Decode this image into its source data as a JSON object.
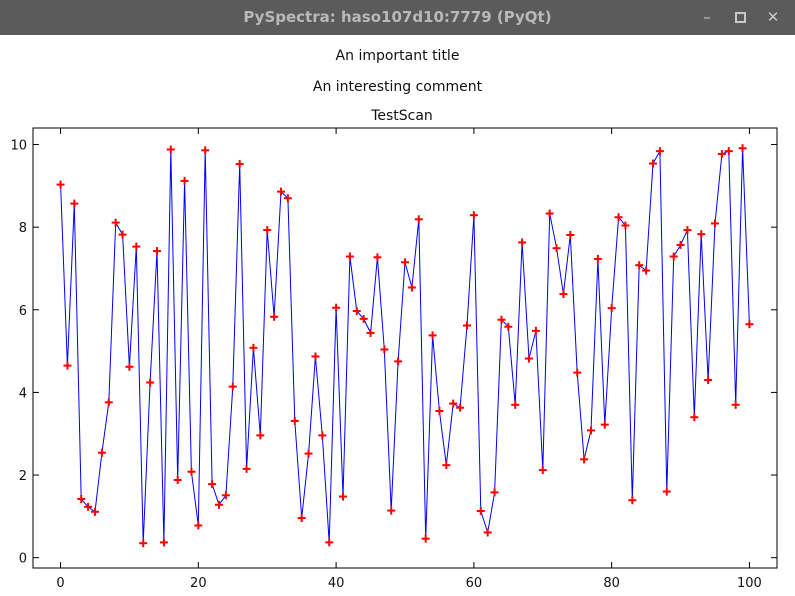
{
  "window": {
    "title": "PySpectra: haso107d10:7779 (PyQt)",
    "min_icon": "minimize-icon",
    "max_icon": "maximize-icon",
    "close_icon": "close-icon"
  },
  "figure": {
    "title": "An important title",
    "comment": "An interesting comment"
  },
  "chart_data": {
    "type": "line",
    "title": "TestScan",
    "xlabel": "",
    "ylabel": "",
    "xlim": [
      -4,
      104
    ],
    "ylim": [
      -0.25,
      10.4
    ],
    "xticks": [
      0,
      20,
      40,
      60,
      80,
      100
    ],
    "yticks": [
      0,
      2,
      4,
      6,
      8,
      10
    ],
    "line_color": "#0000ff",
    "marker_color": "#ff0000",
    "marker": "plus",
    "grid": false,
    "series": [
      {
        "x": [
          0,
          1,
          2,
          3,
          4,
          5,
          6,
          7,
          8,
          9,
          10,
          11,
          12,
          13,
          14,
          15,
          16,
          17,
          18,
          19,
          20,
          21,
          22,
          23,
          24,
          25,
          26,
          27,
          28,
          29,
          30,
          31,
          32,
          33,
          34,
          35,
          36,
          37,
          38,
          39,
          40,
          41,
          42,
          43,
          44,
          45,
          46,
          47,
          48,
          49,
          50,
          51,
          52,
          53,
          54,
          55,
          56,
          57,
          58,
          59,
          60,
          61,
          62,
          63,
          64,
          65,
          66,
          67,
          68,
          69,
          70,
          71,
          72,
          73,
          74,
          75,
          76,
          77,
          78,
          79,
          80,
          81,
          82,
          83,
          84,
          85,
          86,
          87,
          88,
          89,
          90,
          91,
          92,
          93,
          94,
          95,
          96,
          97,
          98,
          99,
          100
        ],
        "y": [
          9.03,
          4.65,
          8.57,
          1.42,
          1.23,
          1.11,
          2.54,
          3.76,
          8.11,
          7.82,
          4.62,
          7.53,
          0.35,
          4.24,
          7.42,
          0.37,
          9.88,
          1.88,
          9.12,
          2.08,
          0.78,
          9.86,
          1.78,
          1.28,
          1.51,
          4.14,
          9.53,
          2.15,
          5.08,
          2.96,
          7.93,
          5.83,
          8.86,
          8.7,
          3.31,
          0.96,
          2.52,
          4.87,
          2.96,
          0.37,
          6.05,
          1.48,
          7.29,
          5.97,
          5.78,
          5.44,
          7.27,
          5.04,
          1.14,
          4.75,
          7.15,
          6.54,
          8.19,
          0.46,
          5.38,
          3.55,
          2.24,
          3.73,
          3.63,
          5.62,
          8.29,
          1.13,
          0.61,
          1.58,
          5.76,
          5.59,
          3.7,
          7.63,
          4.82,
          5.49,
          2.12,
          8.33,
          7.49,
          6.38,
          7.81,
          4.48,
          2.38,
          3.08,
          7.23,
          3.22,
          6.04,
          8.24,
          8.04,
          1.39,
          7.08,
          6.95,
          9.54,
          9.84,
          1.6,
          7.29,
          7.57,
          7.93,
          3.4,
          7.83,
          4.3,
          8.09,
          9.77,
          9.84,
          3.7,
          9.91,
          5.65
        ]
      }
    ]
  }
}
